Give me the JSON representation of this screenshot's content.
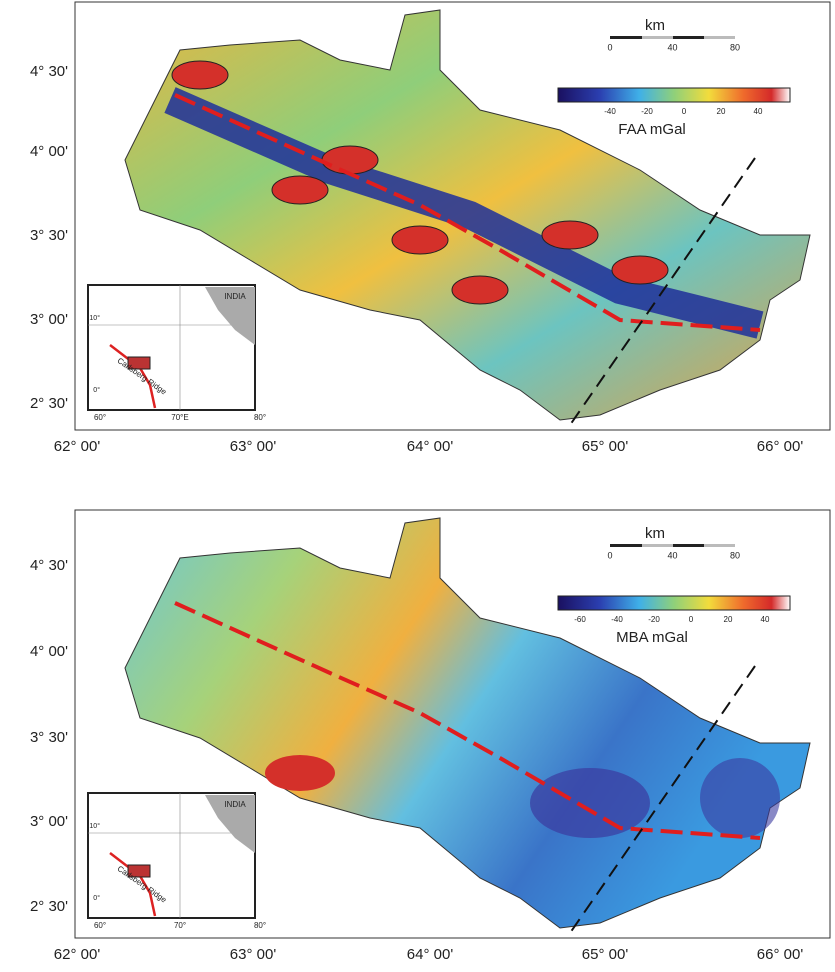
{
  "panels": [
    {
      "xticks": [
        "62° 00'",
        "63° 00'",
        "64° 00'",
        "65° 00'",
        "66° 00'"
      ],
      "yticks": [
        "4° 30'",
        "4° 00'",
        "3° 30'",
        "3° 00'",
        "2° 30'"
      ],
      "scale": {
        "unit": "km",
        "labels": [
          "0",
          "40",
          "80"
        ]
      },
      "colorbar": {
        "label": "FAA mGal",
        "ticks": [
          "-40",
          "-20",
          "0",
          "20",
          "40"
        ]
      },
      "inset": {
        "country": "INDIA",
        "ridge": "Carlsberg Ridge",
        "xlabels": [
          "60°",
          "70°E",
          "80°"
        ],
        "ylabels": [
          "10°",
          "0°"
        ]
      }
    },
    {
      "xticks": [
        "62° 00'",
        "63° 00'",
        "64° 00'",
        "65° 00'",
        "66° 00'"
      ],
      "yticks": [
        "4° 30'",
        "4° 00'",
        "3° 30'",
        "3° 00'",
        "2° 30'"
      ],
      "scale": {
        "unit": "km",
        "labels": [
          "0",
          "40",
          "80"
        ]
      },
      "colorbar": {
        "label": "MBA mGal",
        "ticks": [
          "-60",
          "-40",
          "-20",
          "0",
          "20",
          "40"
        ]
      },
      "inset": {
        "country": "INDIA",
        "ridge": "Carlsberg Ridge",
        "xlabels": [
          "60°",
          "70°",
          "80°"
        ],
        "ylabels": [
          "10°",
          "0°"
        ]
      }
    }
  ]
}
